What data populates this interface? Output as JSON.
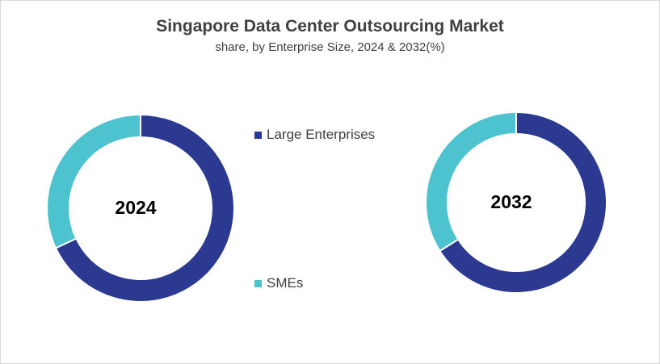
{
  "chart_data": [
    {
      "type": "pie",
      "variant": "donut",
      "title": "Singapore Data Center Outsourcing Market",
      "subtitle": "share, by Enterprise Size, 2024 & 2032(%)",
      "center_label": "2024",
      "categories": [
        "Large Enterprises",
        "SMEs"
      ],
      "values": [
        68,
        32
      ],
      "colors": [
        "#2B3990",
        "#4DC3CF"
      ]
    },
    {
      "type": "pie",
      "variant": "donut",
      "center_label": "2032",
      "categories": [
        "Large Enterprises",
        "SMEs"
      ],
      "values": [
        66,
        34
      ],
      "colors": [
        "#2B3990",
        "#4DC3CF"
      ]
    }
  ],
  "legend": {
    "placement": "center",
    "items": [
      {
        "label": "Large Enterprises",
        "color": "#2B3990"
      },
      {
        "label": "SMEs",
        "color": "#4DC3CF"
      }
    ]
  }
}
